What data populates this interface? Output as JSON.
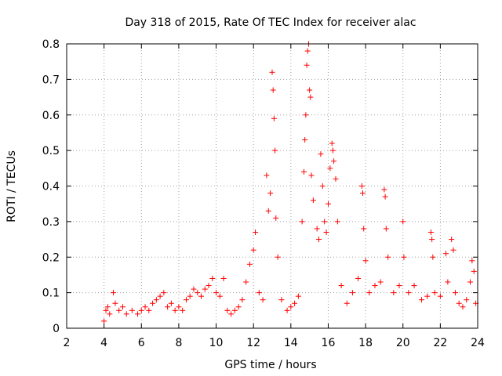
{
  "chart_data": {
    "type": "scatter",
    "title": "Day 318 of 2015, Rate Of TEC Index for receiver alac",
    "xlabel": "GPS time / hours",
    "ylabel": "ROTI / TECUs",
    "xlim": [
      2,
      24
    ],
    "ylim": [
      0,
      0.8
    ],
    "x_ticks": [
      2,
      4,
      6,
      8,
      10,
      12,
      14,
      16,
      18,
      20,
      22,
      24
    ],
    "y_ticks": [
      0,
      0.1,
      0.2,
      0.3,
      0.4,
      0.5,
      0.6,
      0.7,
      0.8
    ],
    "x_tick_labels": [
      "2",
      "4",
      "6",
      "8",
      "10",
      "12",
      "14",
      "16",
      "18",
      "20",
      "22",
      "24"
    ],
    "y_tick_labels": [
      "0",
      "0.1",
      "0.2",
      "0.3",
      "0.4",
      "0.5",
      "0.6",
      "0.7",
      "0.8"
    ],
    "grid": true,
    "marker": "+",
    "color": "#ff0000",
    "series": [
      {
        "name": "ROTI",
        "points": [
          [
            4.0,
            0.02
          ],
          [
            4.1,
            0.05
          ],
          [
            4.2,
            0.06
          ],
          [
            4.3,
            0.04
          ],
          [
            4.5,
            0.1
          ],
          [
            4.6,
            0.07
          ],
          [
            4.8,
            0.05
          ],
          [
            5.0,
            0.06
          ],
          [
            5.2,
            0.04
          ],
          [
            5.5,
            0.05
          ],
          [
            5.8,
            0.04
          ],
          [
            6.0,
            0.05
          ],
          [
            6.2,
            0.06
          ],
          [
            6.4,
            0.05
          ],
          [
            6.6,
            0.07
          ],
          [
            6.8,
            0.08
          ],
          [
            7.0,
            0.09
          ],
          [
            7.2,
            0.1
          ],
          [
            7.4,
            0.06
          ],
          [
            7.6,
            0.07
          ],
          [
            7.8,
            0.05
          ],
          [
            8.0,
            0.06
          ],
          [
            8.2,
            0.05
          ],
          [
            8.4,
            0.08
          ],
          [
            8.6,
            0.09
          ],
          [
            8.8,
            0.11
          ],
          [
            9.0,
            0.1
          ],
          [
            9.2,
            0.09
          ],
          [
            9.4,
            0.11
          ],
          [
            9.6,
            0.12
          ],
          [
            9.8,
            0.14
          ],
          [
            10.0,
            0.1
          ],
          [
            10.2,
            0.09
          ],
          [
            10.4,
            0.14
          ],
          [
            10.6,
            0.05
          ],
          [
            10.8,
            0.04
          ],
          [
            11.0,
            0.05
          ],
          [
            11.2,
            0.06
          ],
          [
            11.4,
            0.08
          ],
          [
            11.6,
            0.13
          ],
          [
            11.8,
            0.18
          ],
          [
            12.0,
            0.22
          ],
          [
            12.1,
            0.27
          ],
          [
            12.3,
            0.1
          ],
          [
            12.5,
            0.08
          ],
          [
            12.7,
            0.43
          ],
          [
            12.8,
            0.33
          ],
          [
            12.9,
            0.38
          ],
          [
            13.0,
            0.72
          ],
          [
            13.05,
            0.67
          ],
          [
            13.1,
            0.59
          ],
          [
            13.15,
            0.5
          ],
          [
            13.2,
            0.31
          ],
          [
            13.3,
            0.2
          ],
          [
            13.5,
            0.08
          ],
          [
            13.8,
            0.05
          ],
          [
            14.0,
            0.06
          ],
          [
            14.2,
            0.07
          ],
          [
            14.4,
            0.09
          ],
          [
            14.6,
            0.3
          ],
          [
            14.7,
            0.44
          ],
          [
            14.75,
            0.53
          ],
          [
            14.8,
            0.6
          ],
          [
            14.85,
            0.74
          ],
          [
            14.9,
            0.78
          ],
          [
            14.95,
            0.8
          ],
          [
            15.0,
            0.67
          ],
          [
            15.05,
            0.65
          ],
          [
            15.1,
            0.43
          ],
          [
            15.2,
            0.36
          ],
          [
            15.4,
            0.28
          ],
          [
            15.5,
            0.25
          ],
          [
            15.6,
            0.49
          ],
          [
            15.7,
            0.4
          ],
          [
            15.8,
            0.3
          ],
          [
            15.9,
            0.27
          ],
          [
            16.0,
            0.35
          ],
          [
            16.1,
            0.45
          ],
          [
            16.2,
            0.52
          ],
          [
            16.25,
            0.5
          ],
          [
            16.3,
            0.47
          ],
          [
            16.4,
            0.42
          ],
          [
            16.5,
            0.3
          ],
          [
            16.7,
            0.12
          ],
          [
            17.0,
            0.07
          ],
          [
            17.3,
            0.1
          ],
          [
            17.6,
            0.14
          ],
          [
            17.8,
            0.4
          ],
          [
            17.85,
            0.38
          ],
          [
            17.9,
            0.28
          ],
          [
            18.0,
            0.19
          ],
          [
            18.2,
            0.1
          ],
          [
            18.5,
            0.12
          ],
          [
            18.8,
            0.13
          ],
          [
            19.0,
            0.39
          ],
          [
            19.05,
            0.37
          ],
          [
            19.1,
            0.28
          ],
          [
            19.2,
            0.2
          ],
          [
            19.5,
            0.1
          ],
          [
            19.8,
            0.12
          ],
          [
            20.0,
            0.3
          ],
          [
            20.05,
            0.2
          ],
          [
            20.3,
            0.1
          ],
          [
            20.6,
            0.12
          ],
          [
            21.0,
            0.08
          ],
          [
            21.3,
            0.09
          ],
          [
            21.5,
            0.27
          ],
          [
            21.55,
            0.25
          ],
          [
            21.6,
            0.2
          ],
          [
            21.7,
            0.1
          ],
          [
            22.0,
            0.09
          ],
          [
            22.3,
            0.21
          ],
          [
            22.4,
            0.13
          ],
          [
            22.6,
            0.25
          ],
          [
            22.7,
            0.22
          ],
          [
            22.8,
            0.1
          ],
          [
            23.0,
            0.07
          ],
          [
            23.2,
            0.06
          ],
          [
            23.4,
            0.08
          ],
          [
            23.6,
            0.13
          ],
          [
            23.7,
            0.19
          ],
          [
            23.8,
            0.16
          ],
          [
            23.9,
            0.07
          ]
        ]
      }
    ]
  }
}
